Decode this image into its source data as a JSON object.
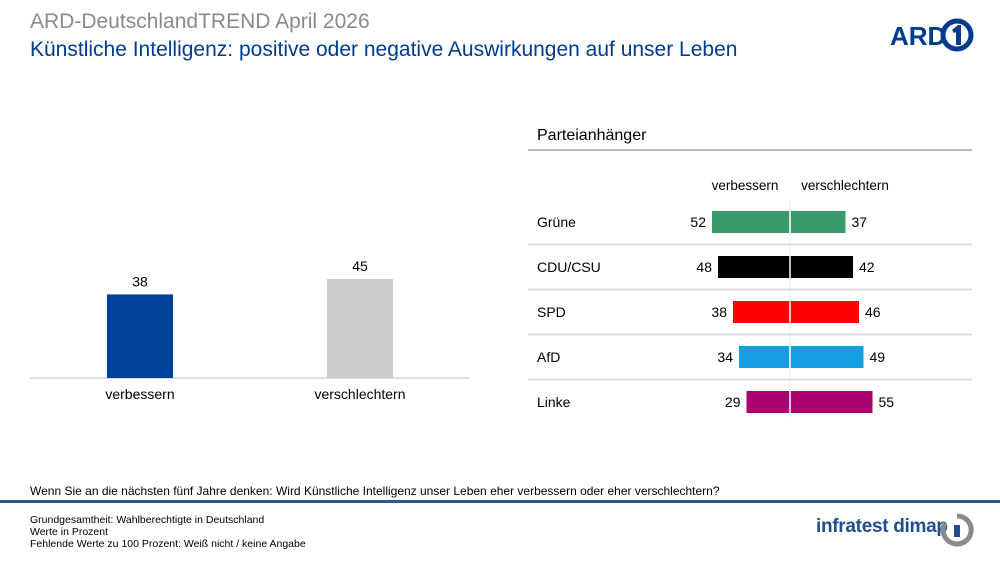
{
  "header": {
    "title": "ARD-DeutschlandTREND April 2026",
    "subtitle": "Künstliche Intelligenz: positive oder negative Auswirkungen auf unser Leben"
  },
  "logos": {
    "ard": "ARD",
    "infratest": "infratest dimap"
  },
  "chart_data": [
    {
      "type": "bar",
      "categories": [
        "verbessern",
        "verschlechtern"
      ],
      "values": [
        38,
        45
      ],
      "colors": [
        "#00429a",
        "#cccccc"
      ],
      "ylim": [
        0,
        100
      ],
      "grid": false
    },
    {
      "type": "bar",
      "title": "Parteianhänger",
      "series_labels": [
        "verbessern",
        "verschlechtern"
      ],
      "categories": [
        "Grüne",
        "CDU/CSU",
        "SPD",
        "AfD",
        "Linke"
      ],
      "left_values": [
        52,
        48,
        38,
        34,
        29
      ],
      "right_values": [
        37,
        42,
        46,
        49,
        55
      ],
      "colors": [
        "#3a9a6a",
        "#000000",
        "#ff0000",
        "#159ee0",
        "#a8006e"
      ],
      "grid": false
    }
  ],
  "question": "Wenn Sie an die nächsten fünf Jahre denken: Wird Künstliche Intelligenz unser Leben eher verbessern oder eher verschlechtern?",
  "footer": {
    "line1": "Grundgesamtheit: Wahlberechtigte in Deutschland",
    "line2": "Werte in Prozent",
    "line3": "Fehlende Werte zu 100 Prozent: Weiß nicht / keine Angabe"
  }
}
